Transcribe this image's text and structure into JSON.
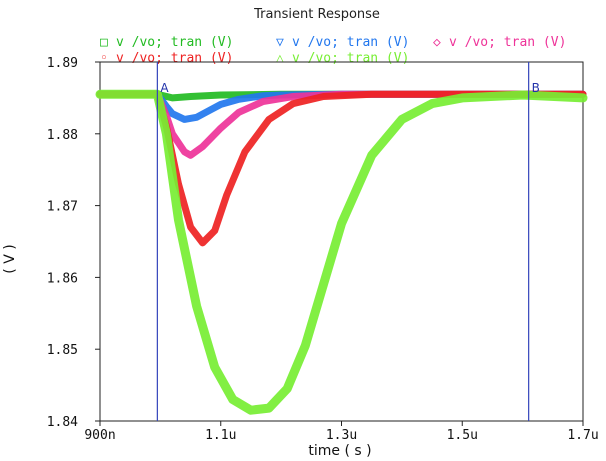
{
  "chart_data": {
    "type": "line",
    "title": "Transient Response",
    "xlabel": "time ( s )",
    "ylabel": "( V )",
    "xlim": [
      9e-07,
      1.7e-06
    ],
    "ylim": [
      1.84,
      1.89
    ],
    "x_ticks": [
      {
        "value": 9e-07,
        "label": "900n"
      },
      {
        "value": 1.1e-06,
        "label": "1.1u"
      },
      {
        "value": 1.3e-06,
        "label": "1.3u"
      },
      {
        "value": 1.5e-06,
        "label": "1.5u"
      },
      {
        "value": 1.7e-06,
        "label": "1.7u"
      }
    ],
    "y_ticks": [
      {
        "value": 1.84,
        "label": "1.84"
      },
      {
        "value": 1.85,
        "label": "1.85"
      },
      {
        "value": 1.86,
        "label": "1.86"
      },
      {
        "value": 1.87,
        "label": "1.87"
      },
      {
        "value": 1.88,
        "label": "1.88"
      },
      {
        "value": 1.89,
        "label": "1.89"
      }
    ],
    "markers": [
      {
        "label": "A",
        "x": 9.95e-07,
        "color": "#3344bb"
      },
      {
        "label": "B",
        "x": 1.61e-06,
        "color": "#3344bb"
      }
    ],
    "grid": false,
    "legend_position": "top",
    "series": [
      {
        "legend": "v /vo; tran (V)",
        "symbol": "□",
        "color": "#22bb22",
        "x": [
          9e-07,
          9.95e-07,
          1.02e-06,
          1.05e-06,
          1.1e-06,
          1.2e-06,
          1.4e-06,
          1.6e-06,
          1.7e-06
        ],
        "y": [
          1.8855,
          1.8855,
          1.885,
          1.8852,
          1.8854,
          1.8855,
          1.8855,
          1.8855,
          1.8855
        ]
      },
      {
        "legend": "v /vo; tran (V)",
        "symbol": "▽",
        "color": "#2277ee",
        "x": [
          9e-07,
          9.95e-07,
          1.01e-06,
          1.02e-06,
          1.04e-06,
          1.06e-06,
          1.08e-06,
          1.1e-06,
          1.13e-06,
          1.17e-06,
          1.2e-06,
          1.3e-06,
          1.7e-06
        ],
        "y": [
          1.8855,
          1.8855,
          1.8838,
          1.8828,
          1.882,
          1.8823,
          1.8832,
          1.8841,
          1.8848,
          1.8853,
          1.8854,
          1.8855,
          1.8855
        ]
      },
      {
        "legend": "v /vo; tran (V)",
        "symbol": "◇",
        "color": "#ee3399",
        "x": [
          9e-07,
          9.95e-07,
          1.01e-06,
          1.02e-06,
          1.04e-06,
          1.05e-06,
          1.07e-06,
          1.1e-06,
          1.13e-06,
          1.17e-06,
          1.22e-06,
          1.3e-06,
          1.7e-06
        ],
        "y": [
          1.8855,
          1.8855,
          1.8825,
          1.88,
          1.8775,
          1.877,
          1.8782,
          1.8808,
          1.883,
          1.8845,
          1.8852,
          1.8855,
          1.8855
        ]
      },
      {
        "legend": "v /vo; tran (V)",
        "symbol": "◦",
        "color": "#ee2222",
        "x": [
          9e-07,
          9.95e-07,
          1.01e-06,
          1.03e-06,
          1.05e-06,
          1.07e-06,
          1.09e-06,
          1.11e-06,
          1.14e-06,
          1.18e-06,
          1.22e-06,
          1.27e-06,
          1.35e-06,
          1.7e-06
        ],
        "y": [
          1.8855,
          1.8855,
          1.881,
          1.873,
          1.867,
          1.8648,
          1.8665,
          1.8715,
          1.8775,
          1.882,
          1.8842,
          1.8852,
          1.8855,
          1.8855
        ]
      },
      {
        "legend": "v /vo; tran (V)",
        "symbol": "△",
        "color": "#77ee33",
        "x": [
          9e-07,
          9.95e-07,
          1.01e-06,
          1.03e-06,
          1.06e-06,
          1.09e-06,
          1.12e-06,
          1.15e-06,
          1.18e-06,
          1.21e-06,
          1.24e-06,
          1.27e-06,
          1.3e-06,
          1.35e-06,
          1.4e-06,
          1.45e-06,
          1.5e-06,
          1.6e-06,
          1.7e-06
        ],
        "y": [
          1.8855,
          1.8855,
          1.88,
          1.868,
          1.856,
          1.8475,
          1.843,
          1.8415,
          1.8418,
          1.8445,
          1.8505,
          1.859,
          1.8675,
          1.877,
          1.882,
          1.8842,
          1.885,
          1.8854,
          1.885
        ]
      }
    ]
  }
}
